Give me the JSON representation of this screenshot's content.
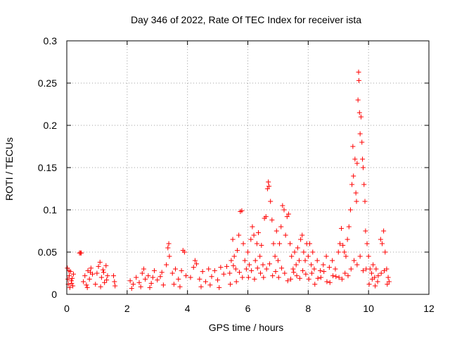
{
  "chart_data": {
    "type": "scatter",
    "title": "Day 346 of 2022, Rate Of TEC Index for receiver ista",
    "xlabel": "GPS time / hours",
    "ylabel": "ROTI / TECUs",
    "xlim": [
      0,
      12
    ],
    "ylim": [
      0,
      0.3
    ],
    "xticks": [
      0,
      2,
      4,
      6,
      8,
      10,
      12
    ],
    "yticks": [
      0,
      0.05,
      0.1,
      0.15,
      0.2,
      0.25,
      0.3
    ],
    "xtick_labels": [
      "0",
      "2",
      "4",
      "6",
      "8",
      "10",
      "12"
    ],
    "ytick_labels": [
      "0",
      "0.05",
      "0.1",
      "0.15",
      "0.2",
      "0.25",
      "0.3"
    ],
    "grid": true,
    "marker": "+",
    "color": "#ff0000",
    "series": [
      {
        "name": "ROTI",
        "points": [
          [
            0.02,
            0.031
          ],
          [
            0.05,
            0.012
          ],
          [
            0.08,
            0.022
          ],
          [
            0.1,
            0.008
          ],
          [
            0.12,
            0.027
          ],
          [
            0.15,
            0.016
          ],
          [
            0.18,
            0.019
          ],
          [
            0.2,
            0.01
          ],
          [
            0.22,
            0.024
          ],
          [
            0.04,
            0.018
          ],
          [
            0.07,
            0.028
          ],
          [
            0.16,
            0.013
          ],
          [
            0.42,
            0.049
          ],
          [
            0.45,
            0.049
          ],
          [
            0.48,
            0.049
          ],
          [
            0.55,
            0.015
          ],
          [
            0.6,
            0.022
          ],
          [
            0.65,
            0.011
          ],
          [
            0.7,
            0.028
          ],
          [
            0.75,
            0.018
          ],
          [
            0.8,
            0.031
          ],
          [
            0.85,
            0.024
          ],
          [
            0.68,
            0.008
          ],
          [
            0.78,
            0.026
          ],
          [
            0.95,
            0.012
          ],
          [
            1.0,
            0.025
          ],
          [
            1.05,
            0.033
          ],
          [
            1.1,
            0.038
          ],
          [
            1.15,
            0.02
          ],
          [
            1.2,
            0.029
          ],
          [
            1.25,
            0.014
          ],
          [
            1.3,
            0.034
          ],
          [
            1.35,
            0.022
          ],
          [
            1.12,
            0.009
          ],
          [
            1.22,
            0.026
          ],
          [
            1.32,
            0.017
          ],
          [
            1.55,
            0.022
          ],
          [
            1.58,
            0.015
          ],
          [
            1.6,
            0.01
          ],
          [
            2.1,
            0.016
          ],
          [
            2.2,
            0.012
          ],
          [
            2.3,
            0.02
          ],
          [
            2.4,
            0.014
          ],
          [
            2.5,
            0.025
          ],
          [
            2.6,
            0.018
          ],
          [
            2.7,
            0.022
          ],
          [
            2.8,
            0.013
          ],
          [
            2.9,
            0.028
          ],
          [
            3.0,
            0.017
          ],
          [
            3.1,
            0.021
          ],
          [
            3.2,
            0.011
          ],
          [
            2.15,
            0.007
          ],
          [
            2.45,
            0.009
          ],
          [
            2.75,
            0.008
          ],
          [
            2.55,
            0.03
          ],
          [
            2.85,
            0.02
          ],
          [
            3.15,
            0.026
          ],
          [
            3.3,
            0.035
          ],
          [
            3.35,
            0.055
          ],
          [
            3.38,
            0.06
          ],
          [
            3.4,
            0.045
          ],
          [
            3.5,
            0.025
          ],
          [
            3.6,
            0.03
          ],
          [
            3.7,
            0.018
          ],
          [
            3.8,
            0.028
          ],
          [
            3.85,
            0.052
          ],
          [
            3.9,
            0.05
          ],
          [
            3.95,
            0.022
          ],
          [
            3.55,
            0.012
          ],
          [
            3.75,
            0.009
          ],
          [
            4.1,
            0.02
          ],
          [
            4.2,
            0.032
          ],
          [
            4.25,
            0.04
          ],
          [
            4.3,
            0.036
          ],
          [
            4.4,
            0.018
          ],
          [
            4.5,
            0.027
          ],
          [
            4.6,
            0.015
          ],
          [
            4.7,
            0.03
          ],
          [
            4.8,
            0.021
          ],
          [
            4.9,
            0.028
          ],
          [
            5.0,
            0.017
          ],
          [
            5.1,
            0.032
          ],
          [
            5.2,
            0.024
          ],
          [
            5.3,
            0.033
          ],
          [
            4.45,
            0.009
          ],
          [
            4.75,
            0.011
          ],
          [
            5.05,
            0.008
          ],
          [
            5.4,
            0.025
          ],
          [
            5.45,
            0.04
          ],
          [
            5.5,
            0.065
          ],
          [
            5.55,
            0.045
          ],
          [
            5.6,
            0.03
          ],
          [
            5.65,
            0.052
          ],
          [
            5.7,
            0.07
          ],
          [
            5.75,
            0.098
          ],
          [
            5.8,
            0.099
          ],
          [
            5.85,
            0.06
          ],
          [
            5.9,
            0.04
          ],
          [
            5.95,
            0.03
          ],
          [
            5.42,
            0.012
          ],
          [
            5.62,
            0.015
          ],
          [
            5.82,
            0.02
          ],
          [
            5.52,
            0.034
          ],
          [
            5.72,
            0.026
          ],
          [
            6.0,
            0.05
          ],
          [
            6.05,
            0.035
          ],
          [
            6.1,
            0.065
          ],
          [
            6.15,
            0.08
          ],
          [
            6.2,
            0.07
          ],
          [
            6.25,
            0.04
          ],
          [
            6.3,
            0.06
          ],
          [
            6.35,
            0.073
          ],
          [
            6.4,
            0.045
          ],
          [
            6.45,
            0.058
          ],
          [
            6.5,
            0.035
          ],
          [
            6.55,
            0.09
          ],
          [
            6.6,
            0.092
          ],
          [
            6.65,
            0.125
          ],
          [
            6.68,
            0.133
          ],
          [
            6.7,
            0.128
          ],
          [
            6.75,
            0.11
          ],
          [
            6.8,
            0.088
          ],
          [
            6.85,
            0.06
          ],
          [
            6.9,
            0.045
          ],
          [
            6.95,
            0.075
          ],
          [
            6.02,
            0.02
          ],
          [
            6.22,
            0.018
          ],
          [
            6.42,
            0.025
          ],
          [
            6.62,
            0.03
          ],
          [
            6.82,
            0.022
          ],
          [
            6.12,
            0.028
          ],
          [
            6.32,
            0.031
          ],
          [
            6.52,
            0.02
          ],
          [
            6.72,
            0.036
          ],
          [
            6.92,
            0.027
          ],
          [
            7.0,
            0.04
          ],
          [
            7.05,
            0.06
          ],
          [
            7.1,
            0.08
          ],
          [
            7.15,
            0.105
          ],
          [
            7.2,
            0.1
          ],
          [
            7.25,
            0.07
          ],
          [
            7.3,
            0.092
          ],
          [
            7.35,
            0.095
          ],
          [
            7.4,
            0.06
          ],
          [
            7.45,
            0.045
          ],
          [
            7.5,
            0.03
          ],
          [
            7.55,
            0.05
          ],
          [
            7.6,
            0.035
          ],
          [
            7.65,
            0.055
          ],
          [
            7.7,
            0.04
          ],
          [
            7.75,
            0.065
          ],
          [
            7.8,
            0.07
          ],
          [
            7.85,
            0.05
          ],
          [
            7.9,
            0.04
          ],
          [
            7.95,
            0.06
          ],
          [
            7.02,
            0.02
          ],
          [
            7.22,
            0.025
          ],
          [
            7.42,
            0.018
          ],
          [
            7.62,
            0.022
          ],
          [
            7.82,
            0.028
          ],
          [
            7.12,
            0.031
          ],
          [
            7.32,
            0.016
          ],
          [
            7.52,
            0.026
          ],
          [
            7.72,
            0.019
          ],
          [
            7.92,
            0.024
          ],
          [
            8.0,
            0.045
          ],
          [
            8.05,
            0.06
          ],
          [
            8.1,
            0.035
          ],
          [
            8.15,
            0.05
          ],
          [
            8.2,
            0.03
          ],
          [
            8.3,
            0.04
          ],
          [
            8.4,
            0.028
          ],
          [
            8.5,
            0.035
          ],
          [
            8.6,
            0.045
          ],
          [
            8.7,
            0.032
          ],
          [
            8.8,
            0.04
          ],
          [
            8.9,
            0.03
          ],
          [
            8.02,
            0.018
          ],
          [
            8.22,
            0.012
          ],
          [
            8.42,
            0.02
          ],
          [
            8.62,
            0.015
          ],
          [
            8.82,
            0.022
          ],
          [
            8.12,
            0.025
          ],
          [
            8.32,
            0.019
          ],
          [
            8.52,
            0.027
          ],
          [
            8.72,
            0.014
          ],
          [
            8.92,
            0.021
          ],
          [
            9.0,
            0.05
          ],
          [
            9.05,
            0.06
          ],
          [
            9.1,
            0.078
          ],
          [
            9.15,
            0.058
          ],
          [
            9.2,
            0.05
          ],
          [
            9.25,
            0.045
          ],
          [
            9.3,
            0.065
          ],
          [
            9.35,
            0.08
          ],
          [
            9.4,
            0.1
          ],
          [
            9.45,
            0.13
          ],
          [
            9.48,
            0.175
          ],
          [
            9.5,
            0.14
          ],
          [
            9.55,
            0.16
          ],
          [
            9.58,
            0.12
          ],
          [
            9.6,
            0.11
          ],
          [
            9.62,
            0.155
          ],
          [
            9.65,
            0.23
          ],
          [
            9.67,
            0.263
          ],
          [
            9.68,
            0.253
          ],
          [
            9.7,
            0.215
          ],
          [
            9.72,
            0.19
          ],
          [
            9.75,
            0.21
          ],
          [
            9.78,
            0.18
          ],
          [
            9.8,
            0.16
          ],
          [
            9.82,
            0.15
          ],
          [
            9.85,
            0.13
          ],
          [
            9.88,
            0.11
          ],
          [
            9.9,
            0.075
          ],
          [
            9.95,
            0.06
          ],
          [
            9.02,
            0.02
          ],
          [
            9.22,
            0.025
          ],
          [
            9.42,
            0.03
          ],
          [
            9.62,
            0.035
          ],
          [
            9.82,
            0.028
          ],
          [
            9.12,
            0.018
          ],
          [
            9.32,
            0.022
          ],
          [
            9.52,
            0.04
          ],
          [
            9.72,
            0.045
          ],
          [
            9.92,
            0.03
          ],
          [
            10.0,
            0.045
          ],
          [
            10.05,
            0.03
          ],
          [
            10.1,
            0.025
          ],
          [
            10.15,
            0.035
          ],
          [
            10.2,
            0.02
          ],
          [
            10.25,
            0.03
          ],
          [
            10.3,
            0.015
          ],
          [
            10.4,
            0.065
          ],
          [
            10.45,
            0.06
          ],
          [
            10.5,
            0.075
          ],
          [
            10.55,
            0.05
          ],
          [
            10.6,
            0.03
          ],
          [
            10.65,
            0.02
          ],
          [
            10.68,
            0.015
          ],
          [
            10.02,
            0.012
          ],
          [
            10.22,
            0.01
          ],
          [
            10.42,
            0.025
          ],
          [
            10.62,
            0.012
          ],
          [
            10.12,
            0.018
          ],
          [
            10.32,
            0.022
          ],
          [
            10.52,
            0.028
          ]
        ]
      }
    ]
  }
}
